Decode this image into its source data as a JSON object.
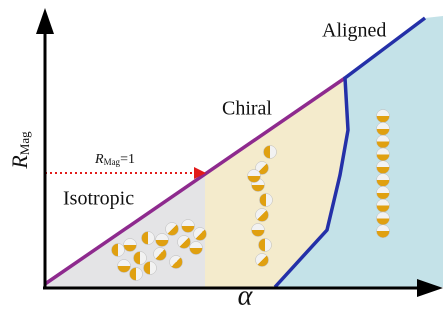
{
  "axes": {
    "y_label": "R",
    "y_label_sub": "Mag",
    "x_label": "α"
  },
  "regions": [
    {
      "label": "Isotropic"
    },
    {
      "label": "Chiral"
    },
    {
      "label": "Aligned"
    }
  ],
  "annotation": {
    "symbol": "R",
    "sub": "Mag",
    "rest": "=1"
  }
}
